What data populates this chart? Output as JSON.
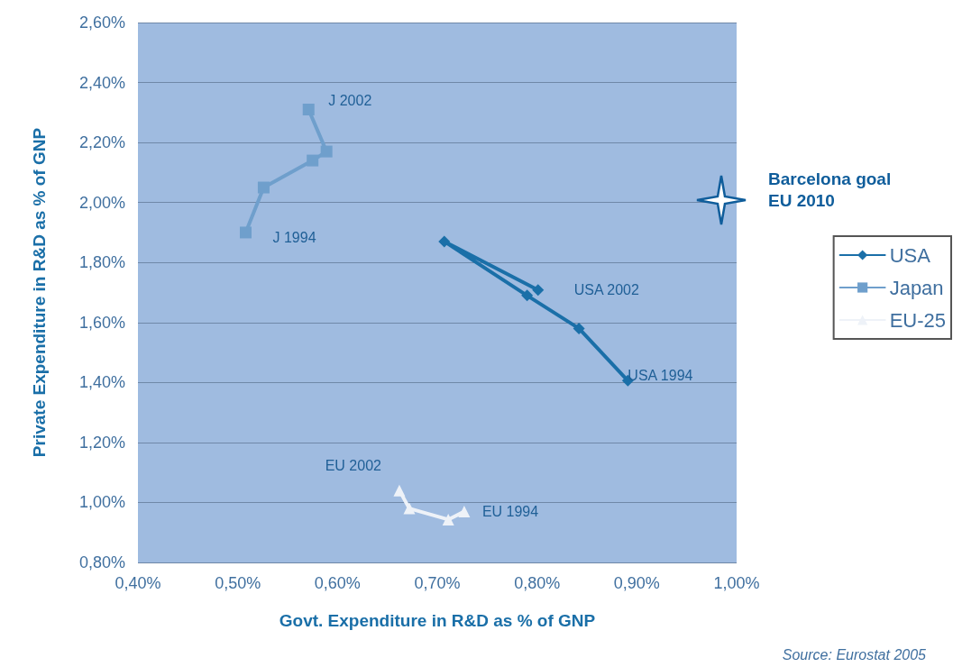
{
  "chart_data": {
    "type": "line",
    "xlabel": "Govt. Expenditure in R&D as % of GNP",
    "ylabel": "Private Expenditure in R&D as % of GNP",
    "series": [
      {
        "name": "USA",
        "color": "#1a6fa8",
        "marker": "diamond",
        "x": [
          0.891,
          0.842,
          0.79,
          0.707,
          0.801
        ],
        "values": [
          1.406,
          1.58,
          1.69,
          1.87,
          1.708
        ]
      },
      {
        "name": "Japan",
        "color": "#6f9fcc",
        "marker": "square",
        "x": [
          0.508,
          0.526,
          0.575,
          0.589,
          0.571
        ],
        "values": [
          1.9,
          2.05,
          2.14,
          2.17,
          2.31
        ]
      },
      {
        "name": "EU-25",
        "color": "#eef2f8",
        "marker": "triangle",
        "x": [
          0.727,
          0.711,
          0.672,
          0.662
        ],
        "values": [
          0.97,
          0.943,
          0.98,
          1.04
        ]
      }
    ],
    "xlim": [
      0.4,
      1.0
    ],
    "xticks": [
      {
        "value": 0.4,
        "label": "0,40%"
      },
      {
        "value": 0.5,
        "label": "0,50%"
      },
      {
        "value": 0.6,
        "label": "0,60%"
      },
      {
        "value": 0.7,
        "label": "0,70%"
      },
      {
        "value": 0.8,
        "label": "0,80%"
      },
      {
        "value": 0.9,
        "label": "0,90%"
      },
      {
        "value": 1.0,
        "label": "1,00%"
      }
    ],
    "ylim": [
      0.8,
      2.6
    ],
    "yticks": [
      {
        "value": 0.8,
        "label": "0,80%"
      },
      {
        "value": 1.0,
        "label": "1,00%"
      },
      {
        "value": 1.2,
        "label": "1,20%"
      },
      {
        "value": 1.4,
        "label": "1,40%"
      },
      {
        "value": 1.6,
        "label": "1,60%"
      },
      {
        "value": 1.8,
        "label": "1,80%"
      },
      {
        "value": 2.0,
        "label": "2,00%"
      },
      {
        "value": 2.2,
        "label": "2,20%"
      },
      {
        "value": 2.4,
        "label": "2,40%"
      },
      {
        "value": 2.6,
        "label": "2,60%"
      }
    ],
    "grid": "y",
    "legend": "right",
    "annotations": [
      {
        "text": "J 2002",
        "x": 0.571,
        "y": 2.31
      },
      {
        "text": "J 1994",
        "x": 0.508,
        "y": 1.9
      },
      {
        "text": "USA 2002",
        "x": 0.801,
        "y": 1.708
      },
      {
        "text": "USA 1994",
        "x": 0.891,
        "y": 1.406
      },
      {
        "text": "EU 2002",
        "x": 0.662,
        "y": 1.04
      },
      {
        "text": "EU 1994",
        "x": 0.727,
        "y": 0.97
      },
      "Barcelona goal\nEU 2010",
      "Source: Eurostat 2005"
    ]
  }
}
